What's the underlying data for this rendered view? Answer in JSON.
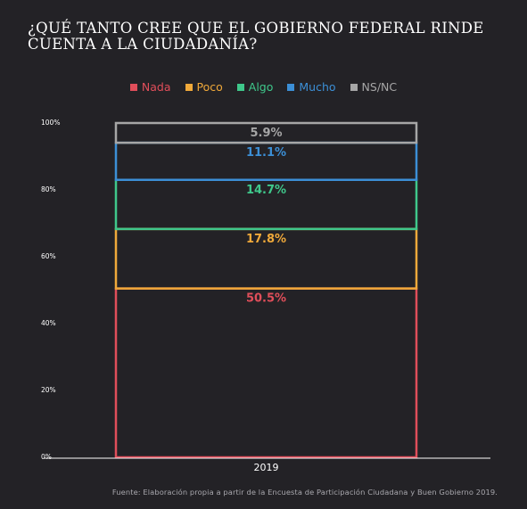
{
  "title": "¿QUÉ TANTO CREE QUE EL GOBIERNO FEDERAL RINDE CUENTA A LA CIUDADANÍA?",
  "source": "Fuente: Elaboración propia a partir de la Encuesta de Participación Ciudadana y Buen Gobierno 2019.",
  "colors": {
    "background": "#232226",
    "Nada": "#e04e5a",
    "Poco": "#f0a93a",
    "Algo": "#3fc88b",
    "Mucho": "#3c8fd6",
    "NS/NC": "#a6a6a6"
  },
  "chart_data": {
    "type": "bar",
    "stacked": true,
    "categories": [
      "2019"
    ],
    "series": [
      {
        "name": "Nada",
        "values": [
          50.5
        ],
        "label": "50.5%"
      },
      {
        "name": "Poco",
        "values": [
          17.8
        ],
        "label": "17.8%"
      },
      {
        "name": "Algo",
        "values": [
          14.7
        ],
        "label": "14.7%"
      },
      {
        "name": "Mucho",
        "values": [
          11.1
        ],
        "label": "11.1%"
      },
      {
        "name": "NS/NC",
        "values": [
          5.9
        ],
        "label": "5.9%"
      }
    ],
    "ylim": [
      0,
      100
    ],
    "yticks": [
      {
        "value": 0,
        "label": "0%"
      },
      {
        "value": 20,
        "label": "20%"
      },
      {
        "value": 40,
        "label": "40%"
      },
      {
        "value": 60,
        "label": "60%"
      },
      {
        "value": 80,
        "label": "80%"
      },
      {
        "value": 100,
        "label": "100%"
      }
    ],
    "legend_position": "top",
    "grid": false
  }
}
